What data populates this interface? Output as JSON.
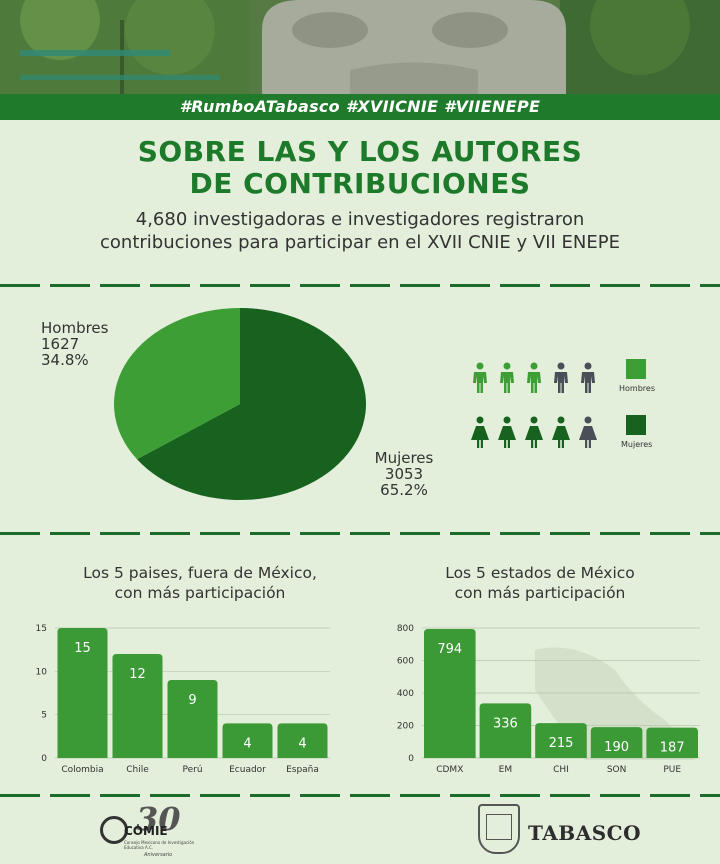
{
  "header": {
    "hashtags": "#RumboATabasco #XVIICNIE #VIIENEPE"
  },
  "title": {
    "line1": "SOBRE LAS Y LOS AUTORES",
    "line2": "DE CONTRIBUCIONES"
  },
  "subtitle": {
    "line1": "4,680 investigadoras e investigadores registraron",
    "line2": "contribuciones para participar en el XVII CNIE y VII ENEPE"
  },
  "colors": {
    "accent_dark": "#1f7a2c",
    "hombres": "#3c9e35",
    "mujeres": "#17621f",
    "bar": "#3b9a36",
    "gray_icon": "#4a4e57"
  },
  "chart_data": [
    {
      "type": "pie",
      "slices": [
        {
          "name": "Hombres",
          "value": 1627,
          "percent_label": "34.8%",
          "color": "#3c9e35"
        },
        {
          "name": "Mujeres",
          "value": 3053,
          "percent_label": "65.2%",
          "color": "#17621f"
        }
      ],
      "legend": [
        {
          "name": "Hombres",
          "icon": "male-figure-icon",
          "highlighted": 3,
          "total": 5
        },
        {
          "name": "Mujeres",
          "icon": "female-figure-icon",
          "highlighted": 4,
          "total": 5
        }
      ]
    },
    {
      "type": "bar",
      "title_line1": "Los 5 paises, fuera de México,",
      "title_line2": "con más participación",
      "categories": [
        "Colombia",
        "Chile",
        "Perú",
        "Ecuador",
        "España"
      ],
      "values": [
        15,
        12,
        9,
        4,
        4
      ],
      "yticks": [
        0,
        5,
        10,
        15
      ],
      "ylim": [
        0,
        15
      ]
    },
    {
      "type": "bar",
      "title_line1": "Los 5 estados de México",
      "title_line2": "con más participación",
      "categories": [
        "CDMX",
        "EM",
        "CHI",
        "SON",
        "PUE"
      ],
      "values": [
        794,
        336,
        215,
        190,
        187
      ],
      "yticks": [
        0,
        200,
        400,
        600,
        800
      ],
      "ylim": [
        0,
        800
      ]
    }
  ],
  "footer": {
    "comie_number": "30",
    "comie_name": "COMIE",
    "comie_sub": "Consejo Mexicano de Investigación Educativa A.C.",
    "comie_anniv": "Aniversario",
    "tabasco": "TABASCO"
  }
}
